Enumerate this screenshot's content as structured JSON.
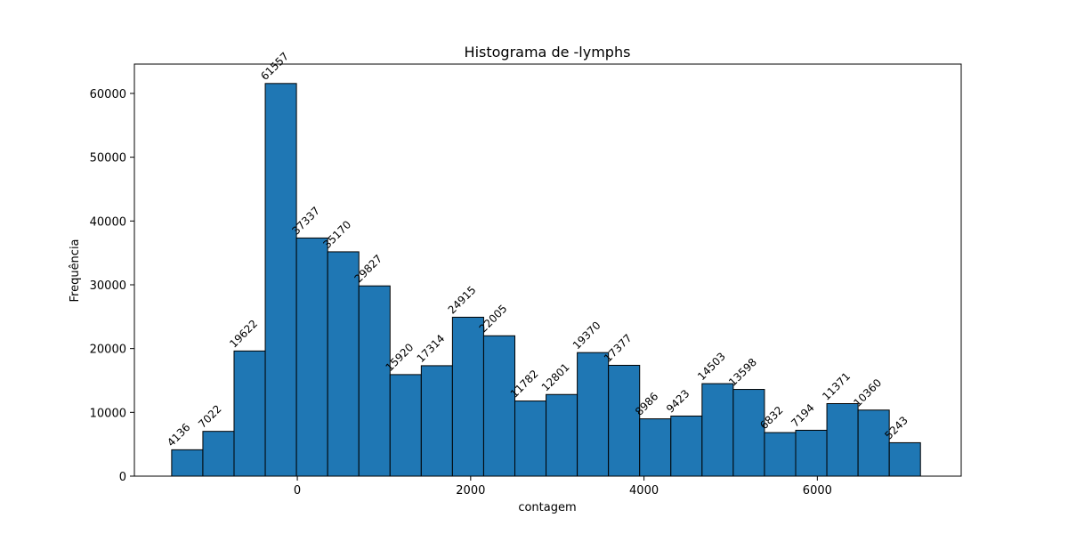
{
  "chart_data": {
    "type": "bar",
    "title": "Histograma de -lymphs",
    "xlabel": "contagem",
    "ylabel": "Frequência",
    "bar_color": "#1f77b4",
    "edge_color": "#000000",
    "xlim": [
      -1880,
      7660
    ],
    "ylim": [
      0,
      64600
    ],
    "xticks": [
      0,
      2000,
      4000,
      6000
    ],
    "xtick_labels": [
      "0",
      "2000",
      "4000",
      "6000"
    ],
    "yticks": [
      0,
      10000,
      20000,
      30000,
      40000,
      50000,
      60000
    ],
    "ytick_labels": [
      "0",
      "10000",
      "20000",
      "30000",
      "40000",
      "50000",
      "60000"
    ],
    "bin_edges": [
      -1450,
      -1090,
      -730,
      -370,
      -10,
      350,
      710,
      1070,
      1430,
      1790,
      2150,
      2510,
      2870,
      3230,
      3590,
      3950,
      4310,
      4670,
      5030,
      5390,
      5750,
      6110,
      6470,
      6830,
      7190
    ],
    "values": [
      4136,
      7022,
      19622,
      61557,
      37337,
      35170,
      29827,
      15920,
      17314,
      24915,
      22005,
      11782,
      12801,
      19370,
      17377,
      8986,
      9423,
      14503,
      13598,
      6832,
      7194,
      11371,
      10360,
      5243
    ],
    "grid": false
  }
}
